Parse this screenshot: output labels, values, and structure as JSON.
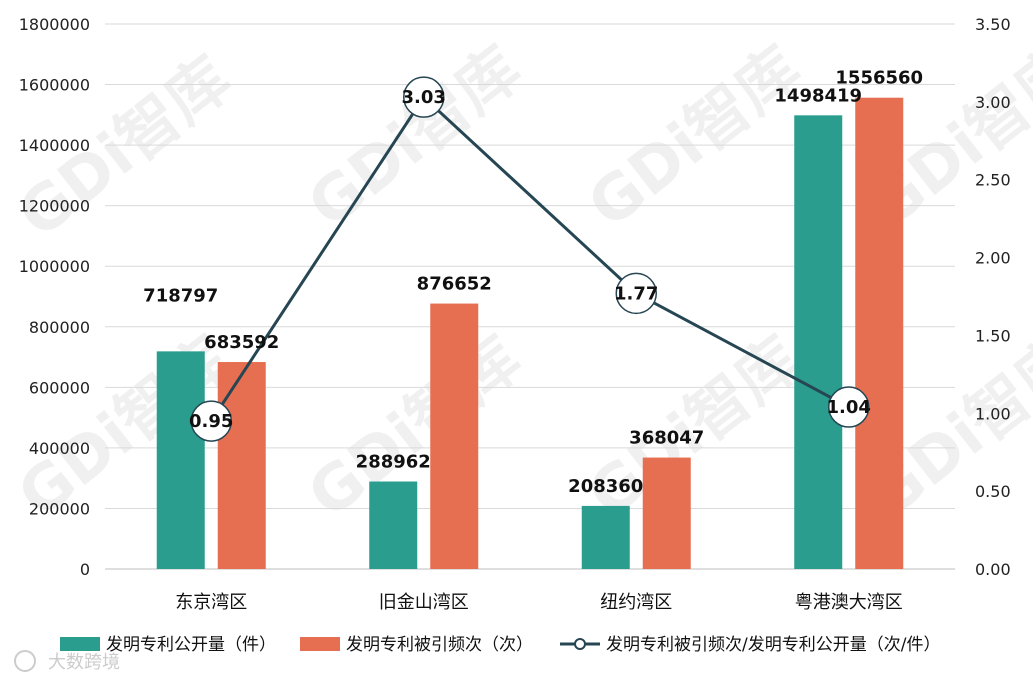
{
  "chart_data": {
    "type": "bar",
    "categories": [
      "东京湾区",
      "旧金山湾区",
      "纽约湾区",
      "粤港澳大湾区"
    ],
    "series": [
      {
        "name": "发明专利公开量（件）",
        "kind": "bar",
        "axis": "left",
        "color": "#2a9d8f",
        "values": [
          718797,
          288962,
          208360,
          1498419
        ]
      },
      {
        "name": "发明专利被引频次（次）",
        "kind": "bar",
        "axis": "left",
        "color": "#e76f51",
        "values": [
          683592,
          876652,
          368047,
          1556560
        ]
      },
      {
        "name": "发明专利被引频次/发明专利公开量（次/件）",
        "kind": "line",
        "axis": "right",
        "color": "#264653",
        "values": [
          0.95,
          3.03,
          1.77,
          1.04
        ]
      }
    ],
    "value_labels": {
      "bars": [
        [
          "718797",
          "683592"
        ],
        [
          "288962",
          "876652"
        ],
        [
          "208360",
          "368047"
        ],
        [
          "1498419",
          "1556560"
        ]
      ],
      "line": [
        "0.95",
        "3.03",
        "1.77",
        "1.04"
      ]
    },
    "y_left": {
      "min": 0,
      "max": 1800000,
      "ticks": [
        "0",
        "200000",
        "400000",
        "600000",
        "800000",
        "1000000",
        "1200000",
        "1400000",
        "1600000",
        "1800000"
      ]
    },
    "y_right": {
      "min": 0,
      "max": 3.5,
      "ticks": [
        "0.00",
        "0.50",
        "1.00",
        "1.50",
        "2.00",
        "2.50",
        "3.00",
        "3.50"
      ]
    },
    "grid": true,
    "legend_position": "bottom"
  },
  "watermarks": [
    "GDi智库",
    "GDi智库",
    "GDi智库",
    "GDi智库",
    "GDi智库",
    "GDi智库",
    "GDi智库",
    "GDi智库"
  ],
  "footer_logo": "大数跨境"
}
